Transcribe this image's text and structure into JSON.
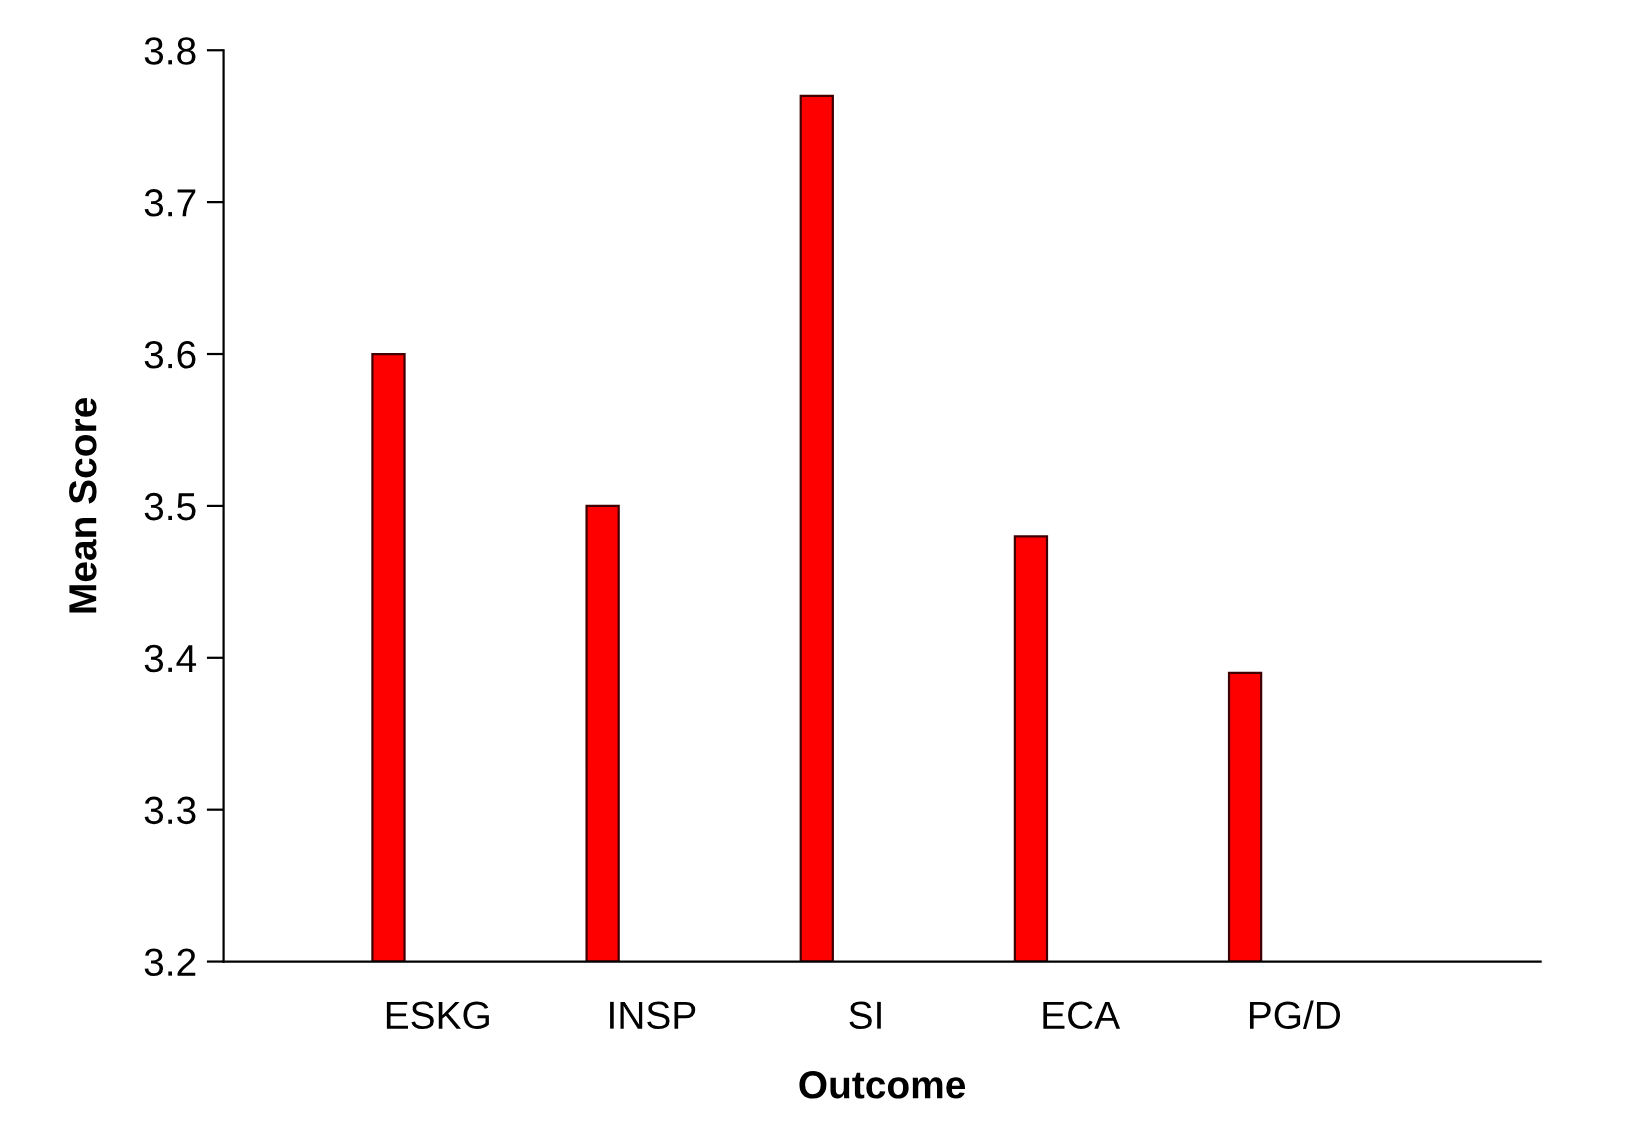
{
  "chart_data": {
    "type": "bar",
    "xlabel": "Outcome",
    "ylabel": "Mean Score",
    "categories": [
      "ESKG",
      "INSP",
      "SI",
      "ECA",
      "PG/D"
    ],
    "values": [
      3.6,
      3.5,
      3.77,
      3.48,
      3.39
    ],
    "color": "#ff0000",
    "ylim": [
      3.2,
      3.8
    ],
    "yticks": [
      3.2,
      3.3,
      3.4,
      3.5,
      3.6,
      3.7,
      3.8
    ],
    "grid": false,
    "legend": false
  }
}
